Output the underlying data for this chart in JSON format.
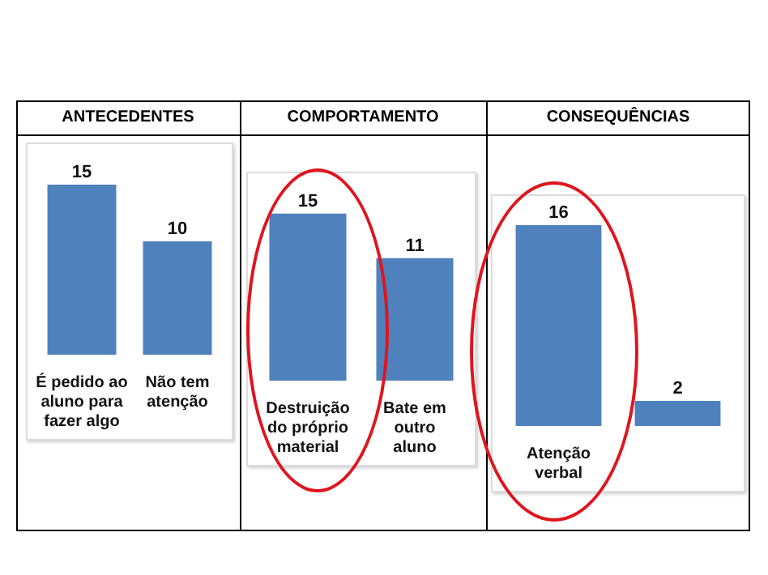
{
  "chart_data": [
    {
      "type": "bar",
      "title": "ANTECEDENTES",
      "categories": [
        "É pedido ao aluno para fazer algo",
        "Não tem atenção"
      ],
      "values": [
        15,
        10
      ],
      "color": "#4f81bd",
      "data_labels": true
    },
    {
      "type": "bar",
      "title": "COMPORTAMENTO",
      "categories": [
        "Destruição do próprio material",
        "Bate em outro aluno"
      ],
      "values": [
        15,
        11
      ],
      "color": "#4f81bd",
      "data_labels": true
    },
    {
      "type": "bar",
      "title": "CONSEQUÊNCIAS",
      "categories": [
        "Atenção verbal",
        null
      ],
      "values": [
        16,
        2
      ],
      "color": "#4f81bd",
      "data_labels": true
    }
  ]
}
